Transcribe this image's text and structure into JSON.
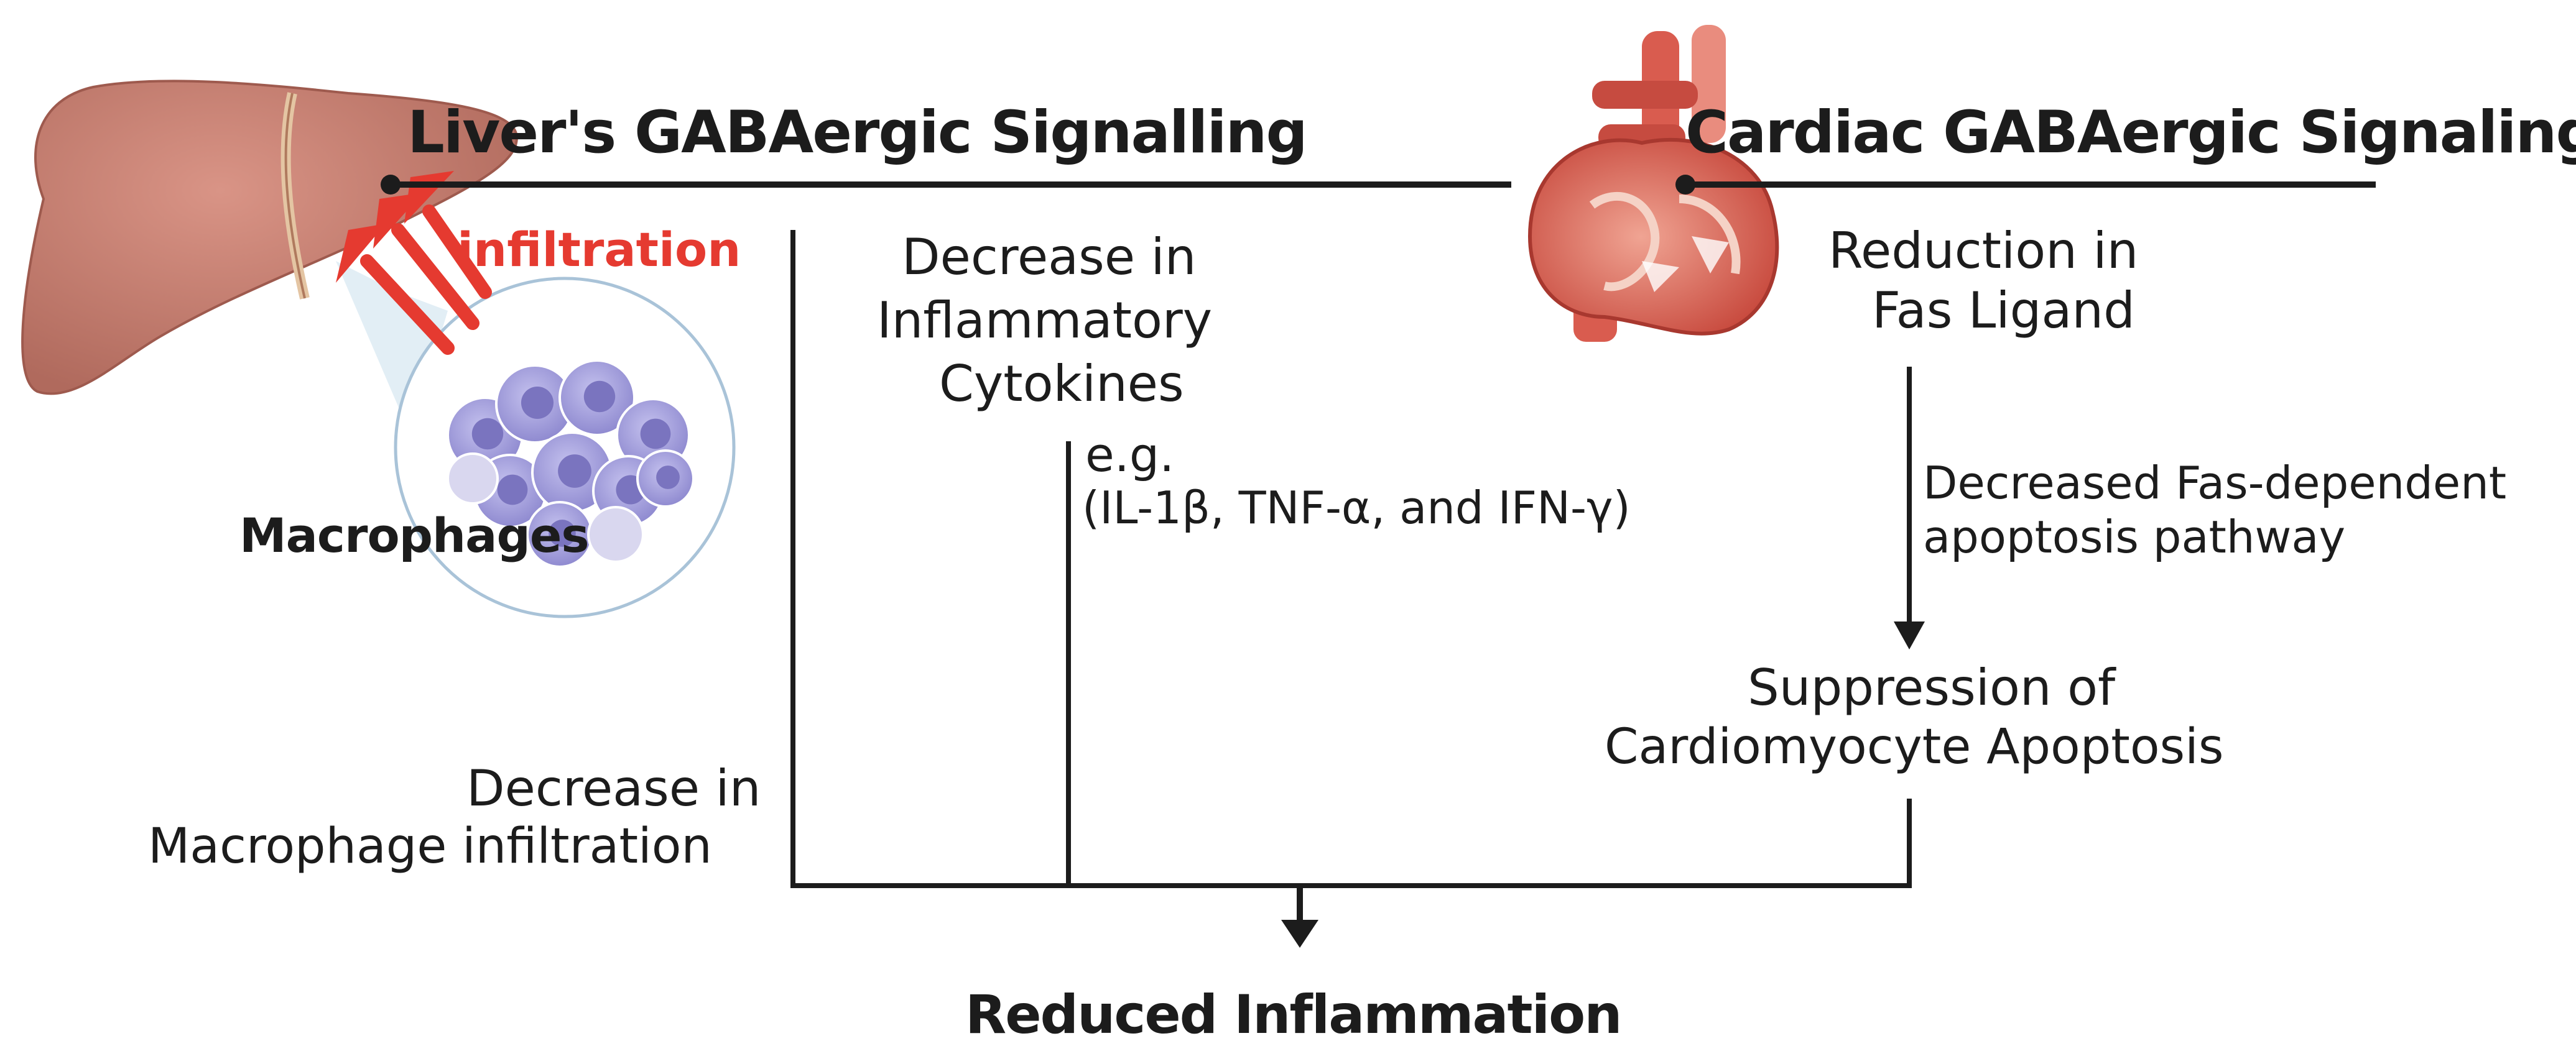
{
  "liver_section": {
    "title": "Liver's GABAergic Signalling",
    "infiltration_label": "infiltration",
    "macrophages_label": "Macrophages",
    "cytokines_line1": "Decrease in",
    "cytokines_line2": "Inflammatory",
    "cytokines_line3": "Cytokines",
    "example_line1": "e.g.",
    "example_line2": "(IL-1β, TNF-α, and IFN-γ)",
    "macrophage_decrease_line1": "Decrease in",
    "macrophage_decrease_line2": "Macrophage infiltration"
  },
  "cardiac_section": {
    "title": "Cardiac GABAergic Signaling",
    "fas_line1": "Reduction in",
    "fas_line2": "Fas Ligand",
    "pathway_line1": "Decreased Fas-dependent",
    "pathway_line2": "apoptosis pathway",
    "apoptosis_line1": "Suppression of",
    "apoptosis_line2": "Cardiomyocyte Apoptosis"
  },
  "outcome": {
    "label": "Reduced Inflammation"
  },
  "colors": {
    "infiltration_red": "#e53a30",
    "liver_fill": "#c77b6f",
    "macrophage_fill": "#9b97d6",
    "heart_fill": "#d95c4f",
    "line_black": "#1c1c1c"
  },
  "icons": {
    "liver": "liver-illustration",
    "heart": "heart-illustration",
    "macrophage": "macrophage-cluster-illustration"
  }
}
